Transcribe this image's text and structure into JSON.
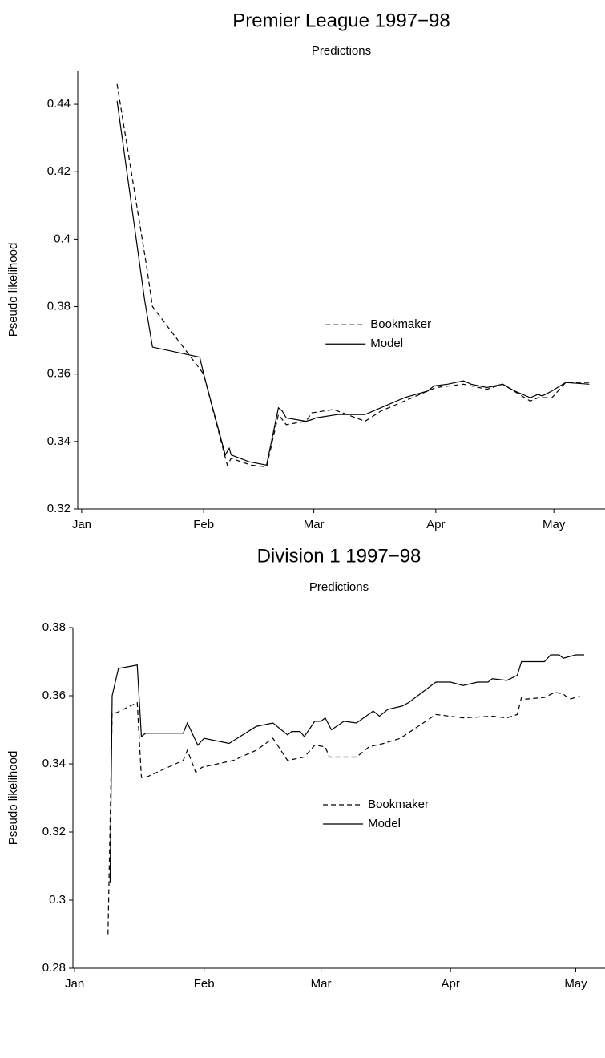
{
  "chart_data": [
    {
      "type": "line",
      "title": "Premier League 1997−98",
      "subtitle": "Predictions",
      "ylabel": "Pseudo likelihood",
      "xlim": [
        -1,
        133
      ],
      "ylim": [
        0.32,
        0.45
      ],
      "xticks": [
        {
          "value": 0,
          "label": "Jan"
        },
        {
          "value": 31,
          "label": "Feb"
        },
        {
          "value": 59,
          "label": "Mar"
        },
        {
          "value": 90,
          "label": "Apr"
        },
        {
          "value": 120,
          "label": "May"
        }
      ],
      "yticks": [
        0.32,
        0.34,
        0.36,
        0.38,
        0.4,
        0.42,
        0.44
      ],
      "legend": "center",
      "series": [
        {
          "name": "Bookmaker",
          "color": "#000000",
          "style": "dashed",
          "x": [
            9,
            16.5,
            18,
            31,
            37,
            38,
            43,
            47,
            50,
            52,
            57,
            58.5,
            64,
            72,
            76,
            84,
            90,
            97,
            103,
            107,
            114,
            116,
            119.5,
            123,
            129
          ],
          "values": [
            0.446,
            0.392,
            0.38,
            0.36,
            0.333,
            0.335,
            0.333,
            0.3325,
            0.348,
            0.345,
            0.346,
            0.3485,
            0.3495,
            0.346,
            0.349,
            0.353,
            0.356,
            0.357,
            0.3555,
            0.357,
            0.352,
            0.353,
            0.353,
            0.3575,
            0.3575
          ]
        },
        {
          "name": "Model",
          "color": "#000000",
          "style": "solid",
          "x": [
            9,
            16,
            18,
            30,
            31,
            36.5,
            37.5,
            38,
            42.5,
            47,
            50,
            51,
            52,
            57,
            58.5,
            59.5,
            65,
            72,
            76,
            82,
            88,
            89.5,
            93,
            97,
            99,
            103,
            107,
            110,
            114,
            116,
            117,
            119.5,
            123,
            129
          ],
          "values": [
            0.441,
            0.382,
            0.368,
            0.365,
            0.36,
            0.336,
            0.338,
            0.336,
            0.334,
            0.333,
            0.35,
            0.349,
            0.347,
            0.346,
            0.3465,
            0.347,
            0.348,
            0.348,
            0.35,
            0.353,
            0.355,
            0.3565,
            0.357,
            0.358,
            0.357,
            0.356,
            0.357,
            0.355,
            0.353,
            0.354,
            0.3535,
            0.355,
            0.3575,
            0.357
          ]
        }
      ]
    },
    {
      "type": "line",
      "title": "Division 1 1997−98",
      "subtitle": "Predictions",
      "ylabel": "Pseudo likelihood",
      "xlim": [
        -0.4,
        127
      ],
      "ylim": [
        0.28,
        0.38
      ],
      "xticks": [
        {
          "value": 0,
          "label": "Jan"
        },
        {
          "value": 31,
          "label": "Feb"
        },
        {
          "value": 59,
          "label": "Mar"
        },
        {
          "value": 90,
          "label": "Apr"
        },
        {
          "value": 120,
          "label": "May"
        }
      ],
      "yticks": [
        0.28,
        0.3,
        0.32,
        0.34,
        0.36,
        0.38
      ],
      "legend": "center",
      "series": [
        {
          "name": "Bookmaker",
          "color": "#000000",
          "style": "dashed",
          "x": [
            8,
            9,
            10,
            15,
            16,
            17,
            26,
            27,
            29,
            30.5,
            38,
            43.5,
            47.5,
            51,
            55,
            57.5,
            60,
            61,
            64,
            67.5,
            70.5,
            74,
            78,
            86.5,
            93,
            100,
            103.5,
            106,
            107,
            108,
            112.5,
            115,
            117,
            118.5,
            121
          ],
          "values": [
            0.29,
            0.355,
            0.355,
            0.358,
            0.336,
            0.336,
            0.341,
            0.344,
            0.3375,
            0.339,
            0.341,
            0.344,
            0.3475,
            0.341,
            0.342,
            0.3455,
            0.345,
            0.342,
            0.342,
            0.342,
            0.345,
            0.346,
            0.3475,
            0.3545,
            0.3535,
            0.354,
            0.3535,
            0.3545,
            0.3595,
            0.359,
            0.3595,
            0.361,
            0.3605,
            0.359,
            0.3598
          ]
        },
        {
          "name": "Model",
          "color": "#000000",
          "style": "solid",
          "x": [
            8.5,
            9,
            10.5,
            15,
            16,
            17,
            26,
            27,
            29.5,
            31,
            37,
            43.5,
            47.5,
            51,
            52,
            54,
            55,
            57.5,
            59,
            60,
            61.5,
            64.5,
            67.5,
            71.5,
            73,
            75,
            78.5,
            80,
            86.5,
            90,
            93,
            96.5,
            99,
            100,
            103.5,
            106,
            107,
            108,
            112.5,
            114,
            116,
            117,
            120,
            122
          ],
          "values": [
            0.305,
            0.36,
            0.368,
            0.369,
            0.348,
            0.349,
            0.349,
            0.352,
            0.3455,
            0.3475,
            0.346,
            0.351,
            0.352,
            0.3485,
            0.3495,
            0.3495,
            0.348,
            0.3525,
            0.3525,
            0.3535,
            0.35,
            0.3525,
            0.352,
            0.3555,
            0.354,
            0.356,
            0.357,
            0.358,
            0.364,
            0.364,
            0.363,
            0.364,
            0.364,
            0.365,
            0.3645,
            0.366,
            0.37,
            0.37,
            0.37,
            0.372,
            0.372,
            0.371,
            0.372,
            0.372
          ]
        }
      ]
    }
  ]
}
